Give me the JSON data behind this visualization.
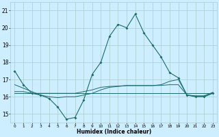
{
  "xlabel": "Humidex (Indice chaleur)",
  "bg_color": "#cceeff",
  "grid_color": "#aacccc",
  "line_color": "#1a6b6b",
  "ylim": [
    14.5,
    21.5
  ],
  "xlim": [
    -0.5,
    23.5
  ],
  "yticks": [
    15,
    16,
    17,
    18,
    19,
    20,
    21
  ],
  "xticks": [
    0,
    1,
    2,
    3,
    4,
    5,
    6,
    7,
    8,
    9,
    10,
    11,
    12,
    13,
    14,
    15,
    16,
    17,
    18,
    19,
    20,
    21,
    22,
    23
  ],
  "xtick_labels": [
    "0",
    "1",
    "2",
    "3",
    "4",
    "5",
    "6",
    "7",
    "8",
    "9",
    "10",
    "11",
    "12",
    "13",
    "14",
    "15",
    "16",
    "17",
    "18",
    "19",
    "20",
    "21",
    "22",
    "23"
  ],
  "series1_x": [
    0,
    1,
    2,
    3,
    4,
    5,
    6,
    7,
    8,
    9,
    10,
    11,
    12,
    13,
    14,
    15,
    16,
    17,
    18,
    19,
    20,
    21,
    22,
    23
  ],
  "series1_y": [
    17.5,
    16.7,
    16.2,
    16.1,
    15.9,
    15.4,
    14.7,
    14.8,
    15.8,
    17.3,
    18.0,
    19.5,
    20.2,
    20.0,
    20.8,
    19.7,
    19.0,
    18.3,
    17.4,
    17.1,
    16.1,
    16.0,
    16.0,
    16.2
  ],
  "series2_x": [
    0,
    1,
    2,
    3,
    4,
    5,
    6,
    7,
    8,
    9,
    10,
    11,
    12,
    13,
    14,
    15,
    16,
    17,
    18,
    19,
    20,
    21,
    22,
    23
  ],
  "series2_y": [
    16.2,
    16.2,
    16.2,
    16.2,
    16.2,
    16.2,
    16.2,
    16.2,
    16.2,
    16.2,
    16.2,
    16.2,
    16.2,
    16.2,
    16.2,
    16.2,
    16.2,
    16.2,
    16.2,
    16.2,
    16.2,
    16.2,
    16.2,
    16.2
  ],
  "series3_x": [
    0,
    1,
    2,
    3,
    4,
    5,
    6,
    7,
    8,
    9,
    10,
    11,
    12,
    13,
    14,
    15,
    16,
    17,
    18,
    19,
    20,
    21,
    22,
    23
  ],
  "series3_y": [
    16.3,
    16.3,
    16.2,
    16.2,
    16.2,
    16.2,
    16.2,
    16.2,
    16.3,
    16.4,
    16.55,
    16.6,
    16.62,
    16.65,
    16.65,
    16.65,
    16.65,
    16.66,
    16.7,
    16.7,
    16.1,
    16.05,
    16.05,
    16.25
  ],
  "series4_x": [
    0,
    1,
    2,
    3,
    4,
    5,
    6,
    7,
    8,
    9,
    10,
    11,
    12,
    13,
    14,
    15,
    16,
    17,
    18,
    19,
    20,
    21,
    22,
    23
  ],
  "series4_y": [
    16.7,
    16.5,
    16.3,
    16.1,
    16.0,
    15.95,
    16.0,
    16.0,
    16.1,
    16.2,
    16.4,
    16.55,
    16.6,
    16.65,
    16.65,
    16.65,
    16.65,
    16.7,
    16.9,
    17.0,
    16.1,
    16.05,
    16.05,
    16.25
  ]
}
